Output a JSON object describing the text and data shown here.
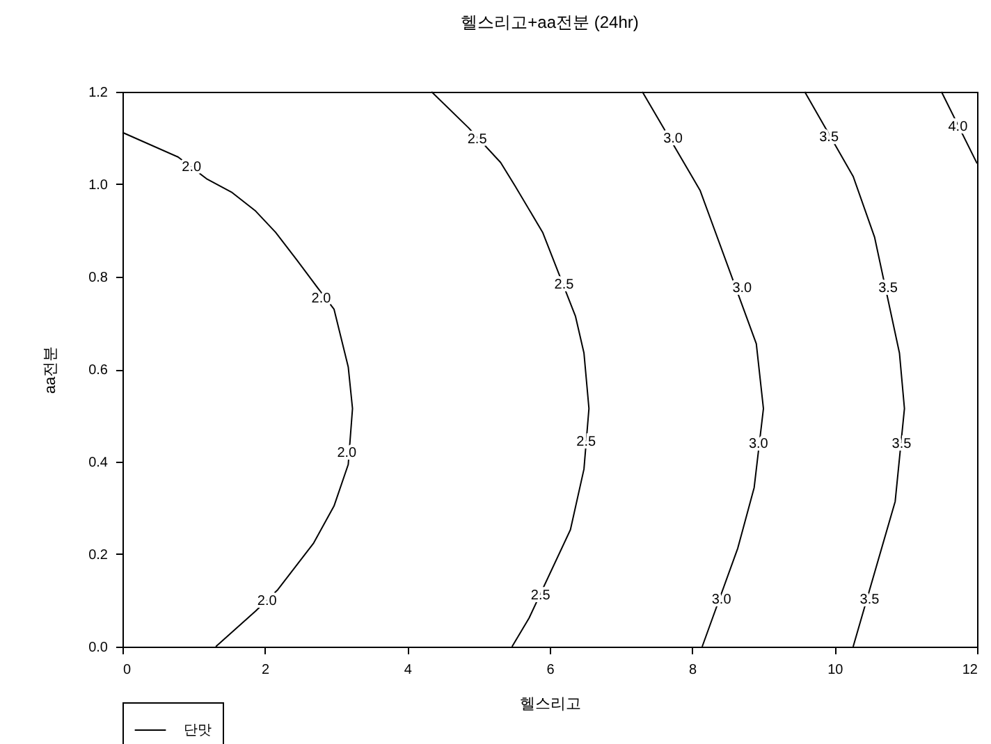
{
  "chart_data": {
    "type": "line",
    "title": "헬스리고+aa전분 (24hr)",
    "xlabel": "헬스리고",
    "ylabel": "aa전분",
    "xlim": [
      0,
      12
    ],
    "ylim": [
      0,
      1.2
    ],
    "xticks": [
      0,
      2,
      4,
      6,
      8,
      10,
      12
    ],
    "yticks": [
      {
        "value": 0,
        "label": "0.0"
      },
      {
        "value": 0.2,
        "label": "0.2"
      },
      {
        "value": 0.4,
        "label": "0.4"
      },
      {
        "value": 0.6,
        "label": "0.6"
      },
      {
        "value": 0.8,
        "label": "0.8"
      },
      {
        "value": 1,
        "label": "1.0"
      },
      {
        "value": 1.2,
        "label": "1.2"
      }
    ],
    "grid": false,
    "legend": "bottom left",
    "marker": "none",
    "line_style": "solid",
    "series": [
      {
        "name": "단맛",
        "color": "#000000",
        "x": [
          0,
          0.78,
          1.18,
          1.54,
          1.87,
          2.15,
          2.45,
          2.74,
          2.97,
          3.17,
          3.23,
          3.17,
          2.97,
          2.68,
          2.18,
          1.87,
          1.31,
          null,
          4.34,
          4.86,
          5.31,
          5.51,
          5.9,
          6.36,
          6.48,
          6.55,
          6.48,
          6.29,
          5.71,
          5.47,
          null,
          7.3,
          8.11,
          8.9,
          9,
          8.87,
          8.64,
          8.14,
          null,
          9.58,
          10.26,
          10.56,
          10.91,
          10.98,
          10.85,
          10.26,
          null,
          11.5,
          12
        ],
        "values": [
          1.112,
          1.059,
          1.012,
          0.982,
          0.942,
          0.896,
          0.836,
          0.776,
          0.73,
          0.605,
          0.515,
          0.394,
          0.304,
          0.223,
          0.123,
          0.077,
          0,
          null,
          1.2,
          1.122,
          1.047,
          0.997,
          0.896,
          0.715,
          0.635,
          0.515,
          0.384,
          0.253,
          0.062,
          0,
          null,
          1.2,
          0.987,
          0.655,
          0.515,
          0.344,
          0.213,
          0,
          null,
          1.2,
          1.017,
          0.886,
          0.635,
          0.515,
          0.314,
          0,
          null,
          1.2,
          1.045
        ]
      }
    ],
    "annotations": [
      {
        "text": "2.0",
        "x": 0.97,
        "y": 1.037
      },
      {
        "text": "2.0",
        "x": 2.79,
        "y": 0.754
      },
      {
        "text": "2.0",
        "x": 3.15,
        "y": 0.419
      },
      {
        "text": "2.0",
        "x": 2.03,
        "y": 0.099
      },
      {
        "text": "2.5",
        "x": 4.98,
        "y": 1.097
      },
      {
        "text": "2.5",
        "x": 6.2,
        "y": 0.783
      },
      {
        "text": "2.5",
        "x": 6.51,
        "y": 0.444
      },
      {
        "text": "2.5",
        "x": 5.87,
        "y": 0.112
      },
      {
        "text": "3.0",
        "x": 7.73,
        "y": 1.099
      },
      {
        "text": "3.0",
        "x": 8.7,
        "y": 0.776
      },
      {
        "text": "3.0",
        "x": 8.93,
        "y": 0.439
      },
      {
        "text": "3.0",
        "x": 8.41,
        "y": 0.102
      },
      {
        "text": "3.5",
        "x": 9.92,
        "y": 1.102
      },
      {
        "text": "3.5",
        "x": 10.75,
        "y": 0.776
      },
      {
        "text": "3.5",
        "x": 10.94,
        "y": 0.439
      },
      {
        "text": "3.5",
        "x": 10.49,
        "y": 0.102
      },
      {
        "text": "4.0",
        "x": 11.73,
        "y": 1.125
      }
    ]
  }
}
